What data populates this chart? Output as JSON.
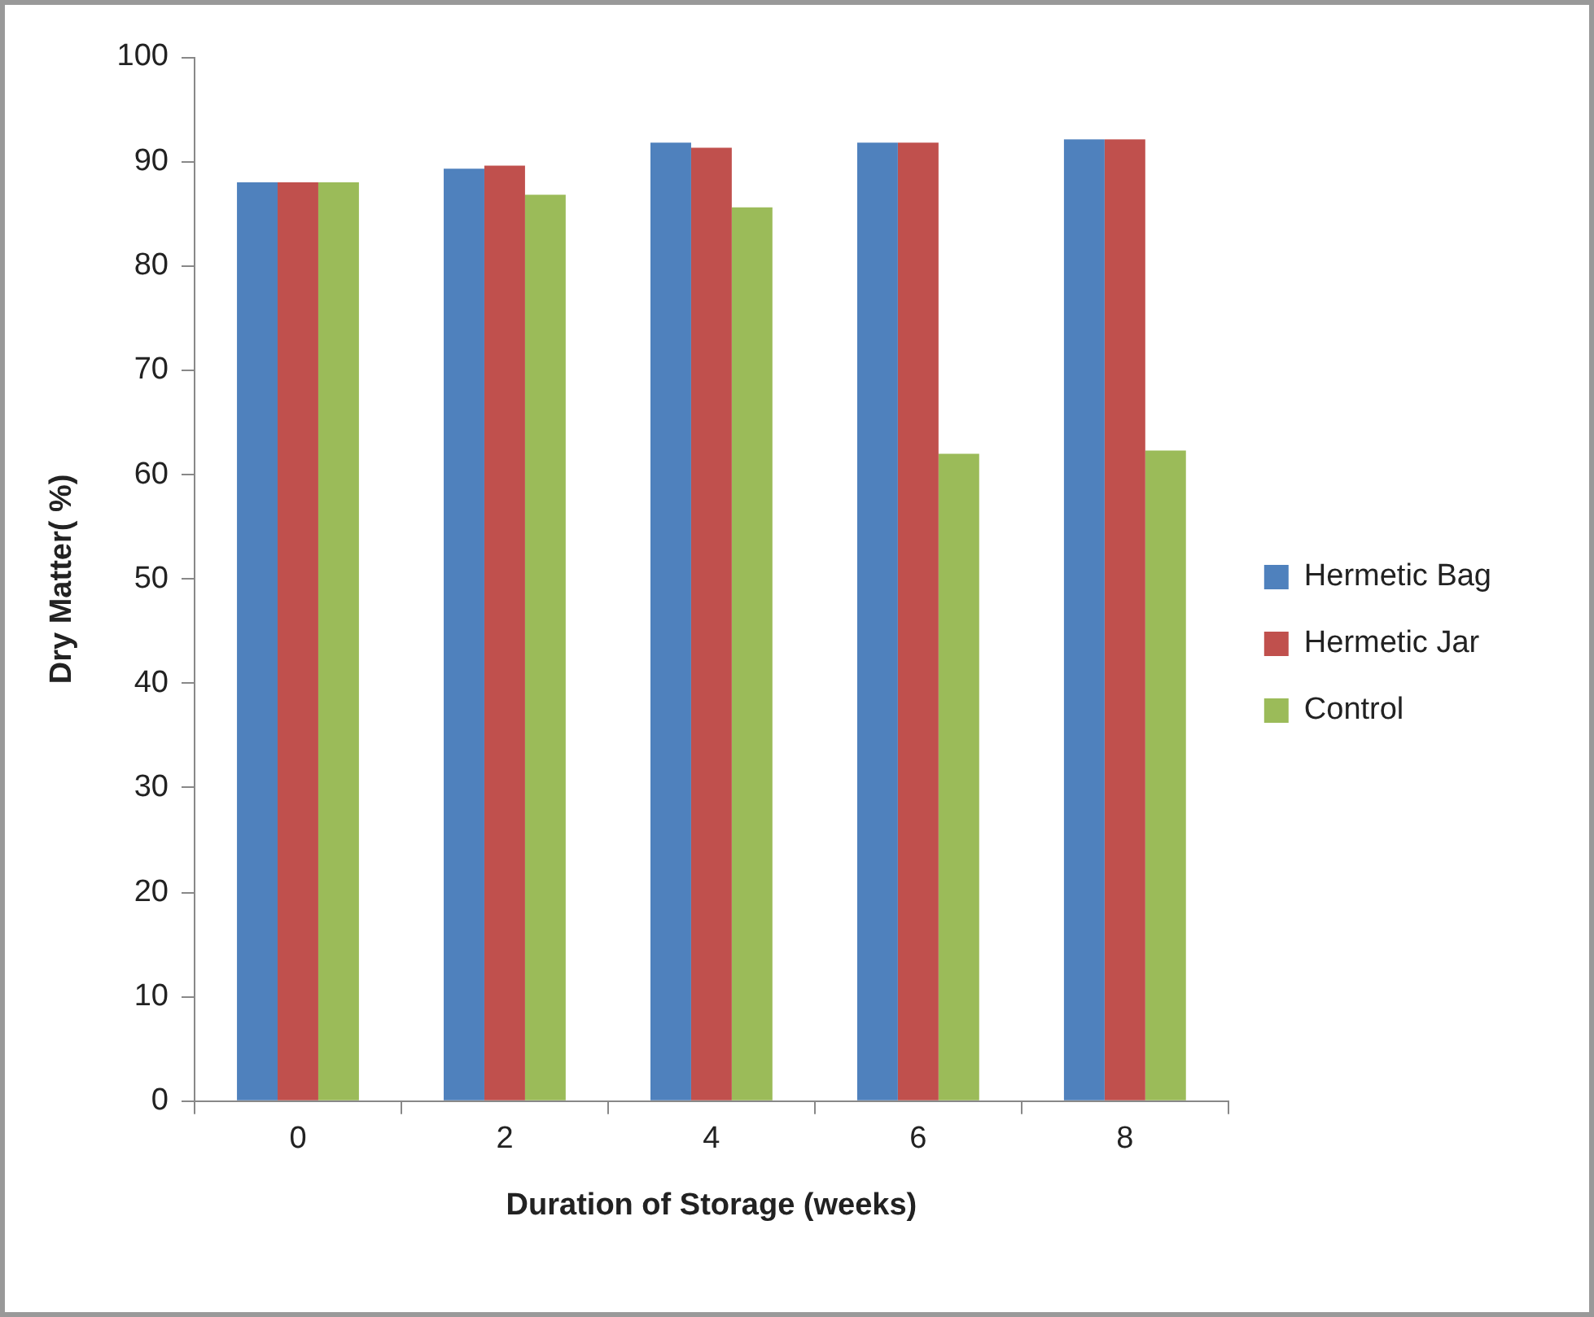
{
  "chart_data": {
    "type": "bar",
    "xlabel": "Duration of Storage (weeks)",
    "ylabel": "Dry Matter( %)",
    "categories": [
      "0",
      "2",
      "4",
      "6",
      "8"
    ],
    "series": [
      {
        "name": "Hermetic Bag",
        "color": "#4f81bd",
        "values": [
          88,
          89.3,
          91.8,
          91.8,
          92.1
        ]
      },
      {
        "name": "Hermetic Jar",
        "color": "#c0504d",
        "values": [
          88,
          89.6,
          91.3,
          91.8,
          92.1
        ]
      },
      {
        "name": "Control",
        "color": "#9bbb59",
        "values": [
          88,
          86.8,
          85.6,
          62,
          62.3
        ]
      }
    ],
    "ylim": [
      0,
      100
    ],
    "yticks": [
      0,
      10,
      20,
      30,
      40,
      50,
      60,
      70,
      80,
      90,
      100
    ],
    "grid": false,
    "legend": "right"
  }
}
